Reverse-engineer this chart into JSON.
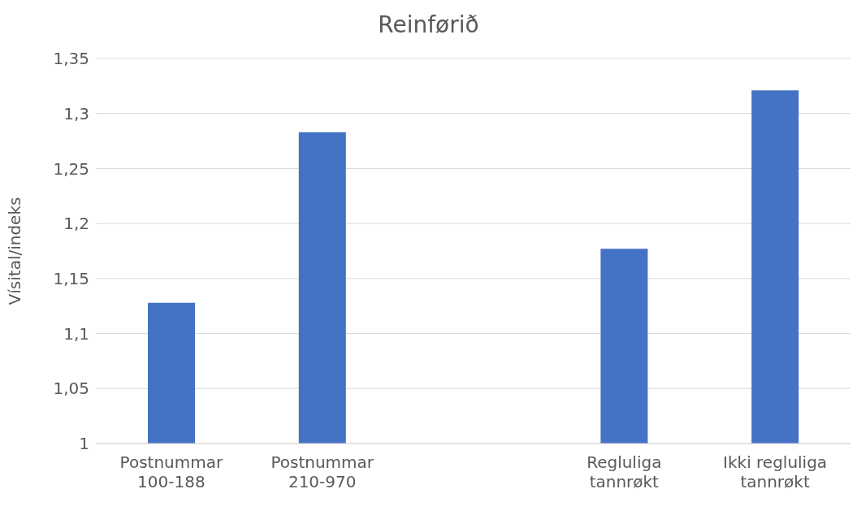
{
  "chart_data": {
    "type": "bar",
    "title": "Reinførið",
    "ylabel": "Vísital/indeks",
    "categories": [
      "Postnummar\n100-188",
      "Postnummar\n210-970",
      null,
      "Regluliga\ntannrøkt",
      "Ikki regluliga\ntannrøkt"
    ],
    "values": [
      1.128,
      1.283,
      null,
      1.177,
      1.321
    ],
    "color": "#4472c4",
    "ylim": [
      1,
      1.35
    ],
    "yticks": [
      1,
      {
        "value": 1.05,
        "label": "1,05"
      },
      {
        "value": 1.1,
        "label": "1,1"
      },
      {
        "value": 1.15,
        "label": "1,15"
      },
      {
        "value": 1.2,
        "label": "1,2"
      },
      {
        "value": 1.25,
        "label": "1,25"
      },
      {
        "value": 1.3,
        "label": "1,3"
      },
      {
        "value": 1.35,
        "label": "1,35"
      }
    ],
    "grid": "y"
  }
}
